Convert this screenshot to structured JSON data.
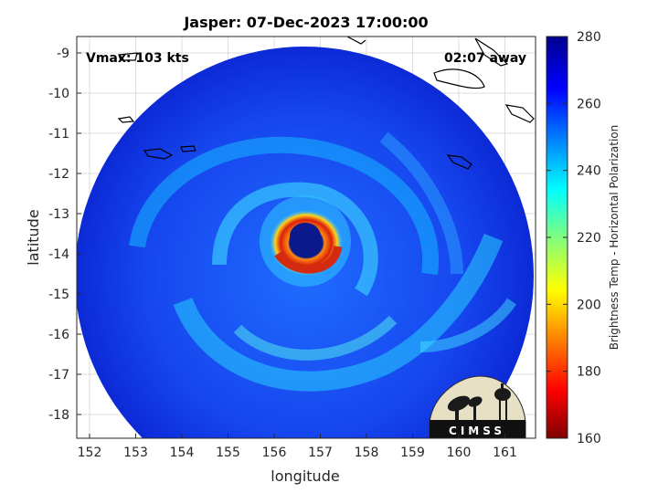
{
  "title": "Jasper: 07-Dec-2023 17:00:00",
  "annotations": {
    "vmax": "Vmax: 103 kts",
    "away": "02:07 away"
  },
  "axes": {
    "xlabel": "longitude",
    "ylabel": "latitude",
    "x_ticks": [
      "152",
      "153",
      "154",
      "155",
      "156",
      "157",
      "158",
      "159",
      "160",
      "161"
    ],
    "y_ticks": [
      "-9",
      "-10",
      "-11",
      "-12",
      "-13",
      "-14",
      "-15",
      "-16",
      "-17",
      "-18"
    ]
  },
  "colorbar": {
    "label": "Brightness Temp - Horizontal Polarization",
    "ticks": [
      "280",
      "260",
      "240",
      "220",
      "200",
      "180",
      "160"
    ],
    "range": [
      160,
      280
    ],
    "colormap": "jet"
  },
  "logo": {
    "text": "CIMSS"
  },
  "colors": {
    "ring": "#0a3ee0",
    "eye": "#0a1a8c",
    "eyewall": "#d42a10",
    "warm_band": "#f4c21c",
    "background": "#ffffff"
  }
}
